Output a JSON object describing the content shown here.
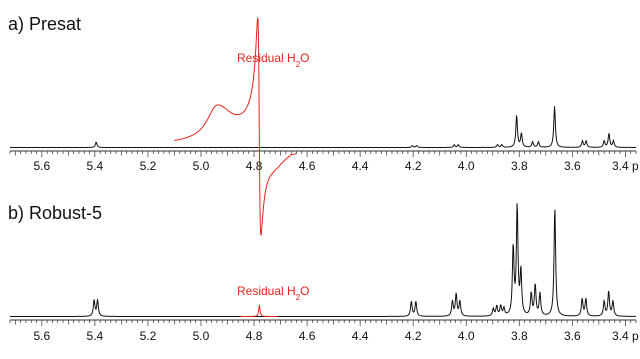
{
  "chart_data": [
    {
      "type": "line",
      "title": "a) Presat",
      "xlabel": "",
      "x_unit": "ppm",
      "xlim": [
        5.72,
        3.36
      ],
      "x_reversed": true,
      "ticks": [
        5.6,
        5.4,
        5.2,
        5.0,
        4.8,
        4.6,
        4.4,
        4.2,
        4.0,
        3.8,
        3.6,
        3.4
      ],
      "tick_labels": [
        "5.6",
        "5.4",
        "5.2",
        "5.0",
        "4.8",
        "4.6",
        "4.4",
        "4.2",
        "4.0",
        "3.8",
        "3.6",
        "3.4 p"
      ],
      "annotations": [
        {
          "text": "Residual H",
          "subscript": "2",
          "suffix": "O",
          "x": 4.78,
          "color": "#e8241c"
        }
      ],
      "series": [
        {
          "color": "#111111",
          "baseline": 0,
          "peaks": [
            {
              "x": 5.395,
              "h": 0.06
            },
            {
              "x": 4.203,
              "h": 0.02
            },
            {
              "x": 4.187,
              "h": 0.02
            },
            {
              "x": 4.045,
              "h": 0.03
            },
            {
              "x": 4.03,
              "h": 0.03
            },
            {
              "x": 3.882,
              "h": 0.03
            },
            {
              "x": 3.866,
              "h": 0.03
            },
            {
              "x": 3.81,
              "h": 0.35
            },
            {
              "x": 3.792,
              "h": 0.15
            },
            {
              "x": 3.75,
              "h": 0.06
            },
            {
              "x": 3.728,
              "h": 0.06
            },
            {
              "x": 3.667,
              "h": 0.45
            },
            {
              "x": 3.562,
              "h": 0.07
            },
            {
              "x": 3.548,
              "h": 0.07
            },
            {
              "x": 3.48,
              "h": 0.07
            },
            {
              "x": 3.462,
              "h": 0.15
            },
            {
              "x": 3.445,
              "h": 0.07
            }
          ]
        },
        {
          "color": "#e8241c",
          "x_range": [
            5.1,
            4.64
          ],
          "features": [
            {
              "kind": "broad_peak",
              "x": 4.94,
              "h": 0.36
            },
            {
              "kind": "dispersive_line",
              "x": 4.78,
              "h_pos": 1.35,
              "h_neg": -1.0
            }
          ]
        }
      ]
    },
    {
      "type": "line",
      "title": "b) Robust-5",
      "xlabel": "",
      "x_unit": "ppm",
      "xlim": [
        5.72,
        3.36
      ],
      "x_reversed": true,
      "ticks": [
        5.6,
        5.4,
        5.2,
        5.0,
        4.8,
        4.6,
        4.4,
        4.2,
        4.0,
        3.8,
        3.6,
        3.4
      ],
      "tick_labels": [
        "5.6",
        "5.4",
        "5.2",
        "5.0",
        "4.8",
        "4.6",
        "4.4",
        "4.2",
        "4.0",
        "3.8",
        "3.6",
        "3.4 p"
      ],
      "annotations": [
        {
          "text": "Residual H",
          "subscript": "2",
          "suffix": "O",
          "x": 4.78,
          "color": "#e8241c"
        }
      ],
      "series": [
        {
          "color": "#111111",
          "baseline": 0,
          "peaks": [
            {
              "x": 5.403,
              "h": 0.13
            },
            {
              "x": 5.39,
              "h": 0.13
            },
            {
              "x": 4.207,
              "h": 0.12
            },
            {
              "x": 4.19,
              "h": 0.12
            },
            {
              "x": 4.052,
              "h": 0.12
            },
            {
              "x": 4.038,
              "h": 0.18
            },
            {
              "x": 4.024,
              "h": 0.12
            },
            {
              "x": 3.898,
              "h": 0.06
            },
            {
              "x": 3.885,
              "h": 0.08
            },
            {
              "x": 3.87,
              "h": 0.08
            },
            {
              "x": 3.858,
              "h": 0.06
            },
            {
              "x": 3.823,
              "h": 0.55
            },
            {
              "x": 3.808,
              "h": 0.88
            },
            {
              "x": 3.794,
              "h": 0.35
            },
            {
              "x": 3.755,
              "h": 0.18
            },
            {
              "x": 3.74,
              "h": 0.25
            },
            {
              "x": 3.722,
              "h": 0.18
            },
            {
              "x": 3.666,
              "h": 0.88
            },
            {
              "x": 3.563,
              "h": 0.14
            },
            {
              "x": 3.549,
              "h": 0.14
            },
            {
              "x": 3.48,
              "h": 0.12
            },
            {
              "x": 3.463,
              "h": 0.2
            },
            {
              "x": 3.447,
              "h": 0.12
            }
          ]
        },
        {
          "color": "#e8241c",
          "x_range": [
            4.85,
            4.71
          ],
          "features": [
            {
              "kind": "peak",
              "x": 4.78,
              "h": 0.09
            }
          ]
        }
      ]
    }
  ]
}
